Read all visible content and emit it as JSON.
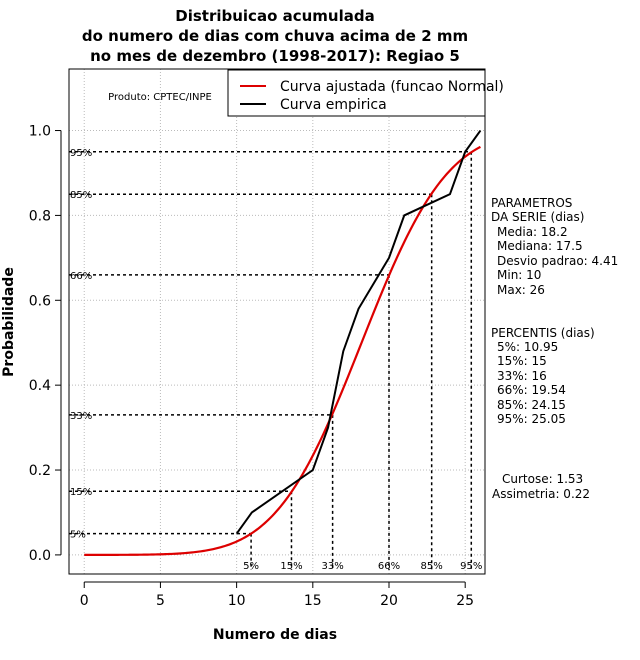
{
  "chart_data": {
    "type": "line",
    "title": [
      "Distribuicao acumulada",
      "do numero de dias com chuva acima de 2 mm",
      "no mes de dezembro (1998-2017): Regiao 5"
    ],
    "xlabel": "Numero de dias",
    "ylabel": "Probabilidade",
    "xlim": [
      -1,
      26.3
    ],
    "ylim": [
      -0.045,
      1.145
    ],
    "xticks": [
      0,
      5,
      10,
      15,
      20,
      25
    ],
    "yticks": [
      0.0,
      0.2,
      0.4,
      0.6,
      0.8,
      1.0
    ],
    "xtick_labels": [
      "0",
      "5",
      "10",
      "15",
      "20",
      "25"
    ],
    "ytick_labels": [
      "0.0",
      "0.2",
      "0.4",
      "0.6",
      "0.8",
      "1.0"
    ],
    "grid": true,
    "product_label": "Produto: CPTEC/INPE",
    "legend": {
      "position": "top-right",
      "entries": [
        {
          "name": "Curva ajustada (funcao Normal)",
          "color": "#dd0000"
        },
        {
          "name": "Curva empirica",
          "color": "#000000"
        }
      ]
    },
    "series": [
      {
        "name": "Curva ajustada (funcao Normal)",
        "color": "#dd0000",
        "distribution": "normal",
        "mean": 18.2,
        "sd": 4.41,
        "x_range": [
          0,
          26
        ]
      },
      {
        "name": "Curva empirica",
        "color": "#000000",
        "x": [
          10,
          11,
          15,
          16,
          17,
          18,
          20,
          21,
          24,
          25,
          26
        ],
        "y": [
          0.05,
          0.1,
          0.2,
          0.3,
          0.48,
          0.58,
          0.7,
          0.8,
          0.85,
          0.95,
          1.0
        ]
      }
    ],
    "percentile_lines": [
      {
        "label": "5%",
        "prob": 0.05,
        "x": 10.95
      },
      {
        "label": "15%",
        "prob": 0.15,
        "x": 13.6
      },
      {
        "label": "33%",
        "prob": 0.33,
        "x": 16.3
      },
      {
        "label": "66%",
        "prob": 0.66,
        "x": 20.0
      },
      {
        "label": "85%",
        "prob": 0.85,
        "x": 22.8
      },
      {
        "label": "95%",
        "prob": 0.95,
        "x": 25.4
      }
    ],
    "parameters": {
      "title_lines": [
        "PARAMETROS",
        "DA SERIE (dias)"
      ],
      "lines": [
        "Media: 18.2",
        "Mediana: 17.5",
        "Desvio padrao: 4.41",
        "Min: 10",
        "Max: 26"
      ]
    },
    "percentis": {
      "title": "PERCENTIS (dias)",
      "lines": [
        "5%: 10.95",
        "15%: 15",
        "33%: 16",
        "66%: 19.54",
        "85%: 24.15",
        "95%: 25.05"
      ]
    },
    "shape": {
      "lines": [
        "Curtose: 1.53",
        "Assimetria: 0.22"
      ]
    }
  }
}
